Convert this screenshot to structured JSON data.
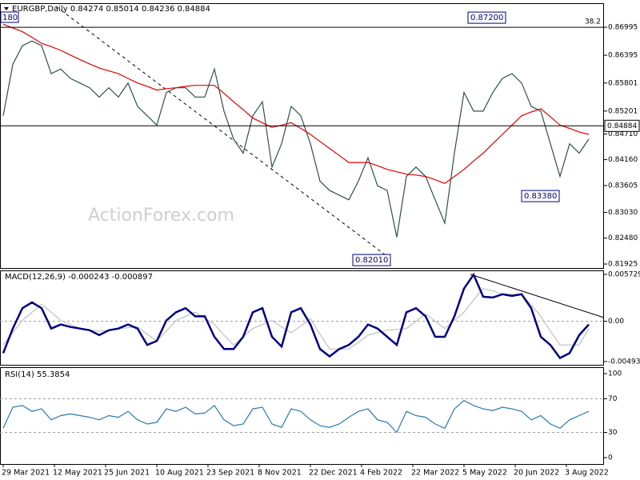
{
  "chart_data": [
    {
      "type": "line",
      "title": "EURGBP,Daily  0.84274 0.85014 0.84236 0.84884",
      "watermark": "ActionForex.com",
      "clipped_label": "180",
      "last_price": 0.84884,
      "fib_level": {
        "value": 0.86995,
        "label": "38.2"
      },
      "annotations": [
        {
          "value": 0.872,
          "label": "0.87200"
        },
        {
          "value": 0.8338,
          "label": "0.83380"
        },
        {
          "value": 0.8201,
          "label": "0.82010"
        }
      ],
      "xlim": [
        -2,
        375.5
      ],
      "ylim": [
        0.8184,
        0.8751
      ],
      "yticks": [
        0.86995,
        0.86395,
        0.85801,
        0.85201,
        {
          "value": 0.8471,
          "label": "0.84710"
        },
        {
          "value": 0.8416,
          "label": "0.84160"
        },
        0.83605,
        {
          "value": 0.8303,
          "label": "0.83030"
        },
        {
          "value": 0.8248,
          "label": "0.82480"
        },
        0.81925
      ],
      "x": [
        0,
        6,
        12,
        18,
        24,
        30,
        36,
        42,
        48,
        54,
        60,
        66,
        72,
        78,
        84,
        90,
        96,
        102,
        108,
        114,
        120,
        126,
        132,
        138,
        144,
        150,
        156,
        162,
        168,
        174,
        180,
        186,
        192,
        198,
        204,
        210,
        216,
        222,
        228,
        234,
        240,
        246,
        252,
        258,
        264,
        270,
        276,
        282,
        288,
        294,
        300,
        306,
        312,
        318,
        324,
        330,
        336,
        342,
        348,
        354,
        360,
        366
      ],
      "series": [
        {
          "color": "#2f4f4f",
          "values": [
            0.851,
            0.862,
            0.866,
            0.867,
            0.866,
            0.86,
            0.861,
            0.859,
            0.858,
            0.857,
            0.855,
            0.857,
            0.855,
            0.858,
            0.853,
            0.851,
            0.849,
            0.856,
            0.857,
            0.857,
            0.855,
            0.855,
            0.861,
            0.852,
            0.846,
            0.843,
            0.851,
            0.854,
            0.84,
            0.845,
            0.853,
            0.851,
            0.845,
            0.837,
            0.835,
            0.834,
            0.833,
            0.837,
            0.842,
            0.836,
            0.835,
            0.825,
            0.838,
            0.84,
            0.838,
            0.833,
            0.828,
            0.843,
            0.856,
            0.852,
            0.852,
            0.856,
            0.859,
            0.86,
            0.858,
            0.853,
            0.852,
            0.845,
            0.838,
            0.845,
            0.843,
            0.846
          ]
        },
        {
          "color": "#e00000",
          "values": [
            0.8706,
            0.8698,
            0.869,
            0.8678,
            0.8665,
            0.8658,
            0.865,
            0.864,
            0.863,
            0.8621,
            0.8612,
            0.8606,
            0.86,
            0.859,
            0.858,
            0.8573,
            0.8565,
            0.8568,
            0.857,
            0.8573,
            0.8575,
            0.8575,
            0.8575,
            0.8558,
            0.854,
            0.8523,
            0.8505,
            0.8495,
            0.8485,
            0.849,
            0.8495,
            0.8483,
            0.847,
            0.8455,
            0.844,
            0.8425,
            0.841,
            0.841,
            0.841,
            0.8403,
            0.8395,
            0.839,
            0.8385,
            0.8383,
            0.838,
            0.8373,
            0.8365,
            0.838,
            0.8395,
            0.8413,
            0.843,
            0.845,
            0.847,
            0.849,
            0.851,
            0.8518,
            0.8525,
            0.8508,
            0.849,
            0.8483,
            0.8475,
            0.847
          ]
        }
      ]
    },
    {
      "type": "line",
      "title": "MACD(12,26,9) -0.000243 -0.000897",
      "xlim": [
        -2,
        375.5
      ],
      "ylim": [
        -0.00533,
        0.00622
      ],
      "yticks": [
        0.005729,
        {
          "value": 0,
          "label": "0.00"
        },
        -0.00493
      ],
      "levels": [
        0
      ],
      "x": [
        0,
        6,
        12,
        18,
        24,
        30,
        36,
        42,
        48,
        54,
        60,
        66,
        72,
        78,
        84,
        90,
        96,
        102,
        108,
        114,
        120,
        126,
        132,
        138,
        144,
        150,
        156,
        162,
        168,
        174,
        180,
        186,
        192,
        198,
        204,
        210,
        216,
        222,
        228,
        234,
        240,
        246,
        252,
        258,
        264,
        270,
        276,
        282,
        288,
        294,
        300,
        306,
        312,
        318,
        324,
        330,
        336,
        342,
        348,
        354,
        360,
        366
      ],
      "series": [
        {
          "color": "#c0c0c0",
          "values": [
            -0.0029,
            -0.0014,
            0.0001,
            0.0011,
            0.0021,
            0.0011,
            0.0001,
            -0.0004,
            -0.0009,
            -0.0011,
            -0.0012,
            -0.0011,
            -0.0009,
            -0.0008,
            -0.0007,
            -0.0016,
            -0.0024,
            -0.0012,
            0.0001,
            0.0006,
            0.0011,
            0.0004,
            -0.0004,
            -0.0017,
            -0.0029,
            -0.0019,
            -0.0009,
            -0.0004,
            0.0001,
            -0.0007,
            -0.0014,
            -0.0006,
            0.0003,
            -0.0016,
            -0.0034,
            -0.0034,
            -0.0034,
            -0.0026,
            -0.0017,
            -0.0014,
            -0.0011,
            -0.001,
            -0.0009,
            0.0,
            0.0009,
            0.0,
            -0.0009,
            0.0001,
            0.0011,
            0.0026,
            0.004,
            0.0037,
            0.0033,
            0.0033,
            0.0033,
            0.002,
            0.0006,
            -0.0012,
            -0.0029,
            -0.0029,
            -0.0029,
            -0.0009
          ]
        },
        {
          "color": "#000080",
          "values": [
            -0.0039,
            -0.0009,
            0.0016,
            0.0023,
            0.0016,
            -0.0009,
            -0.0004,
            -0.0007,
            -0.0009,
            -0.0011,
            -0.0017,
            -0.0011,
            -0.0009,
            -0.0004,
            -0.0009,
            -0.0029,
            -0.0024,
            0.0001,
            0.0011,
            0.0016,
            0.0006,
            0.0006,
            -0.0019,
            -0.0034,
            -0.0034,
            -0.0019,
            0.0011,
            0.0016,
            -0.0019,
            -0.0031,
            0.0011,
            0.0016,
            -0.0004,
            -0.0034,
            -0.0043,
            -0.0034,
            -0.0029,
            -0.0019,
            -0.0004,
            -0.0009,
            -0.0019,
            -0.0029,
            0.0011,
            0.0016,
            0.0006,
            -0.0019,
            -0.0019,
            0.0006,
            0.004,
            0.0057,
            0.003,
            0.0029,
            0.0033,
            0.0031,
            0.0033,
            0.0016,
            -0.0019,
            -0.0029,
            -0.0045,
            -0.0039,
            -0.0017,
            -0.0004
          ]
        }
      ]
    },
    {
      "type": "line",
      "title": "RSI(14) 55.3854",
      "xlim": [
        -2,
        375.5
      ],
      "ylim": [
        -7.6,
        107.6
      ],
      "yticks": [
        100,
        70,
        30,
        0
      ],
      "levels": [
        70,
        30
      ],
      "x": [
        0,
        6,
        12,
        18,
        24,
        30,
        36,
        42,
        48,
        54,
        60,
        66,
        72,
        78,
        84,
        90,
        96,
        102,
        108,
        114,
        120,
        126,
        132,
        138,
        144,
        150,
        156,
        162,
        168,
        174,
        180,
        186,
        192,
        198,
        204,
        210,
        216,
        222,
        228,
        234,
        240,
        246,
        252,
        258,
        264,
        270,
        276,
        282,
        288,
        294,
        300,
        306,
        312,
        318,
        324,
        330,
        336,
        342,
        348,
        354,
        360,
        366
      ],
      "xticks": [
        {
          "value": 0,
          "label": "29 Mar 2021"
        },
        {
          "value": 32,
          "label": "12 May 2021"
        },
        {
          "value": 64,
          "label": "25 Jun 2021"
        },
        {
          "value": 96,
          "label": "10 Aug 2021"
        },
        {
          "value": 128,
          "label": "23 Sep 2021"
        },
        {
          "value": 160,
          "label": "8 Nov 2021"
        },
        {
          "value": 192,
          "label": "22 Dec 2021"
        },
        {
          "value": 224,
          "label": "4 Feb 2022"
        },
        {
          "value": 256,
          "label": "22 Mar 2022"
        },
        {
          "value": 288,
          "label": "5 May 2022"
        },
        {
          "value": 320,
          "label": "20 Jun 2022"
        },
        {
          "value": 352,
          "label": "3 Aug 2022"
        }
      ],
      "series": [
        {
          "color": "#2a7ab0",
          "values": [
            35,
            60,
            62,
            55,
            58,
            45,
            50,
            52,
            50,
            48,
            45,
            50,
            48,
            55,
            45,
            40,
            42,
            58,
            55,
            60,
            52,
            53,
            62,
            45,
            38,
            40,
            58,
            60,
            40,
            36,
            58,
            55,
            45,
            38,
            36,
            40,
            48,
            55,
            58,
            45,
            42,
            30,
            55,
            50,
            48,
            40,
            35,
            58,
            68,
            62,
            58,
            56,
            60,
            58,
            55,
            45,
            50,
            40,
            35,
            45,
            50,
            55
          ]
        }
      ]
    }
  ]
}
